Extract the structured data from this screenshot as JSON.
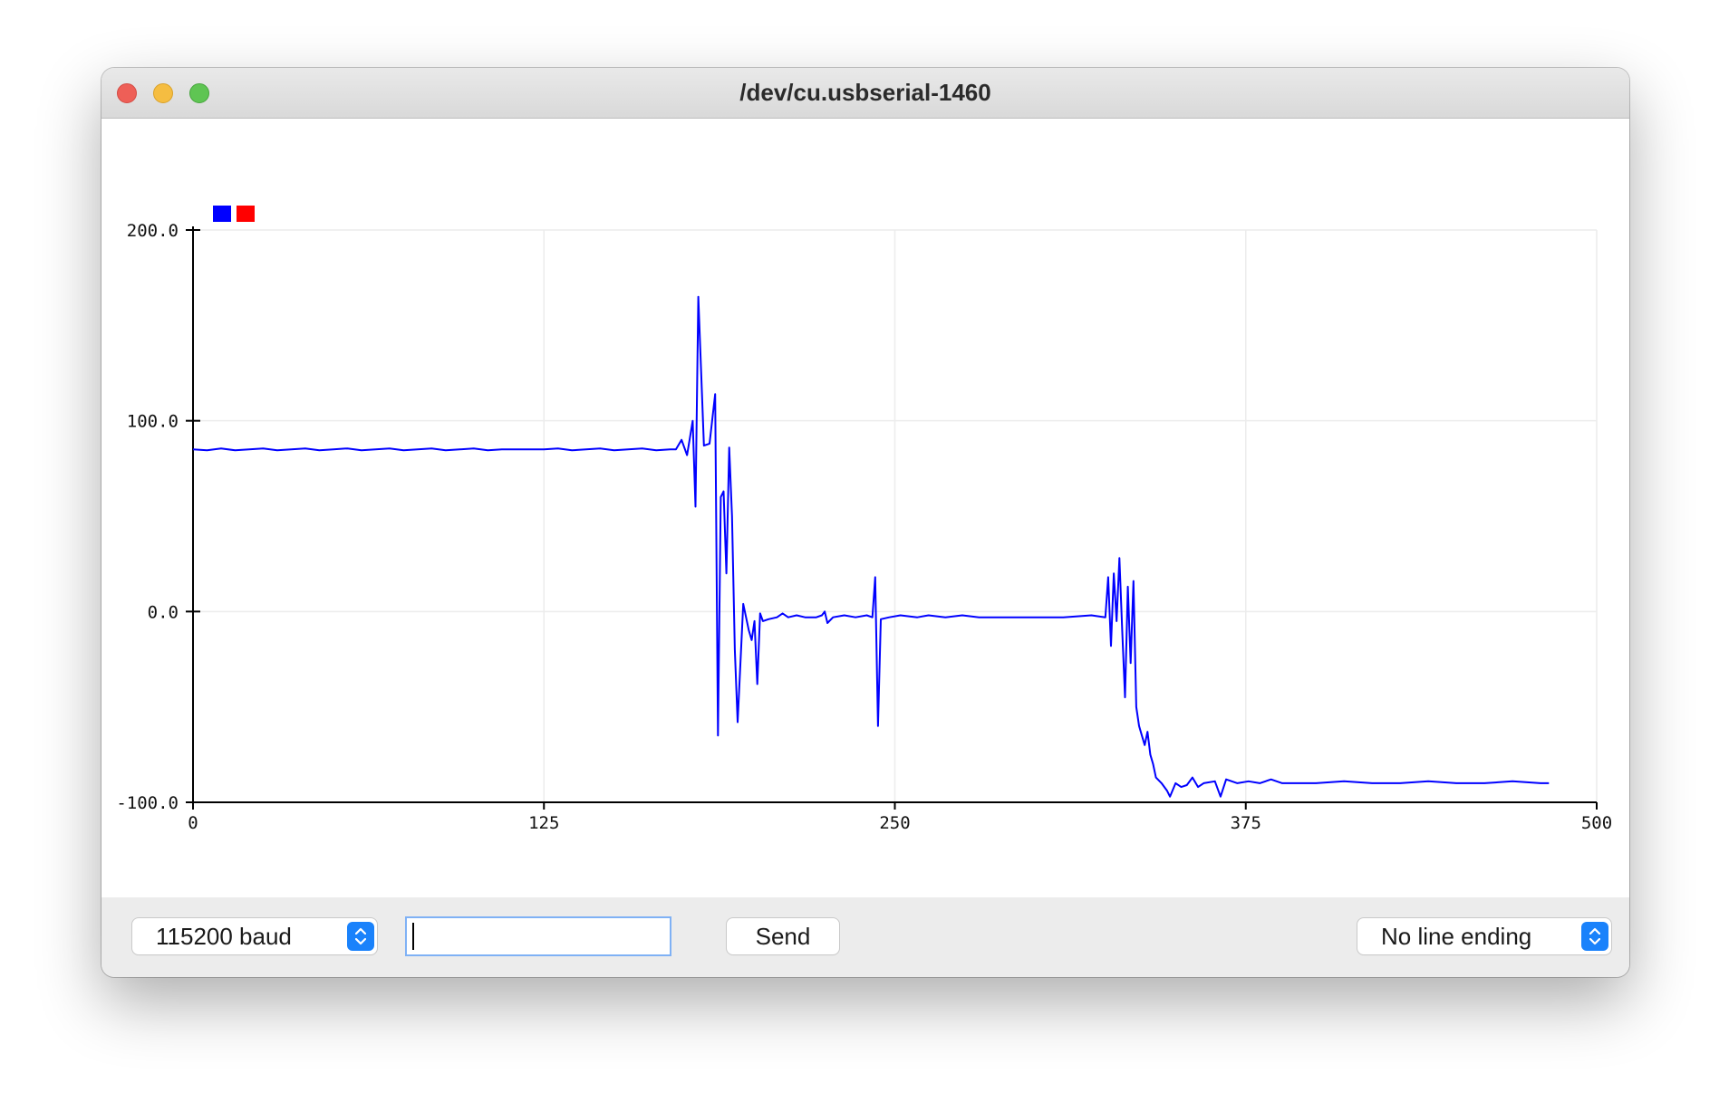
{
  "window": {
    "title": "/dev/cu.usbserial-1460"
  },
  "toolbar": {
    "baud_rate": "115200 baud",
    "message_value": "",
    "send_label": "Send",
    "line_ending": "No line ending"
  },
  "colors": {
    "series_1": "#0000ff",
    "series_2": "#ff0000",
    "select_accent": "#1a82fb"
  },
  "icons": {
    "select_arrows": "up-down-chevron-icon",
    "close": "close-icon",
    "minimize": "minimize-icon",
    "zoom": "zoom-icon"
  },
  "chart_data": {
    "type": "line",
    "grid": true,
    "legend": "top-left",
    "xlim": [
      0,
      500
    ],
    "ylim": [
      -100,
      200
    ],
    "x_ticks": [
      "0",
      "125",
      "250",
      "375",
      "500"
    ],
    "y_ticks": [
      "200.0",
      "100.0",
      "0.0",
      "-100.0"
    ],
    "series": [
      {
        "color": "#0000ff",
        "points": [
          [
            0,
            85
          ],
          [
            5,
            84.5
          ],
          [
            10,
            85.5
          ],
          [
            15,
            84.5
          ],
          [
            20,
            85
          ],
          [
            25,
            85.5
          ],
          [
            30,
            84.5
          ],
          [
            35,
            85
          ],
          [
            40,
            85.5
          ],
          [
            45,
            84.5
          ],
          [
            50,
            85
          ],
          [
            55,
            85.5
          ],
          [
            60,
            84.5
          ],
          [
            65,
            85
          ],
          [
            70,
            85.5
          ],
          [
            75,
            84.5
          ],
          [
            80,
            85
          ],
          [
            85,
            85.5
          ],
          [
            90,
            84.5
          ],
          [
            95,
            85
          ],
          [
            100,
            85.5
          ],
          [
            105,
            84.5
          ],
          [
            110,
            85
          ],
          [
            115,
            85
          ],
          [
            120,
            85
          ],
          [
            125,
            85
          ],
          [
            130,
            85.5
          ],
          [
            135,
            84.5
          ],
          [
            140,
            85
          ],
          [
            145,
            85.5
          ],
          [
            150,
            84.5
          ],
          [
            155,
            85
          ],
          [
            160,
            85.5
          ],
          [
            165,
            84.5
          ],
          [
            170,
            85
          ],
          [
            172,
            85
          ],
          [
            174,
            90
          ],
          [
            176,
            82
          ],
          [
            178,
            100
          ],
          [
            179,
            55
          ],
          [
            180,
            165
          ],
          [
            182,
            87
          ],
          [
            184,
            88
          ],
          [
            186,
            114
          ],
          [
            187,
            -65
          ],
          [
            188,
            60
          ],
          [
            189,
            63
          ],
          [
            190,
            20
          ],
          [
            191,
            86
          ],
          [
            192,
            50
          ],
          [
            193,
            -20
          ],
          [
            194,
            -58
          ],
          [
            196,
            4
          ],
          [
            198,
            -10
          ],
          [
            199,
            -15
          ],
          [
            200,
            -5
          ],
          [
            201,
            -38
          ],
          [
            202,
            -1
          ],
          [
            203,
            -5
          ],
          [
            205,
            -4
          ],
          [
            208,
            -3
          ],
          [
            210,
            -1
          ],
          [
            212,
            -3
          ],
          [
            215,
            -2
          ],
          [
            218,
            -3
          ],
          [
            222,
            -3
          ],
          [
            224,
            -2
          ],
          [
            225,
            0
          ],
          [
            226,
            -6
          ],
          [
            228,
            -3
          ],
          [
            232,
            -2
          ],
          [
            236,
            -3
          ],
          [
            240,
            -2
          ],
          [
            242,
            -3
          ],
          [
            243,
            18
          ],
          [
            244,
            -60
          ],
          [
            245,
            -4
          ],
          [
            248,
            -3
          ],
          [
            252,
            -2
          ],
          [
            258,
            -3
          ],
          [
            262,
            -2
          ],
          [
            268,
            -3
          ],
          [
            274,
            -2
          ],
          [
            280,
            -3
          ],
          [
            290,
            -3
          ],
          [
            300,
            -3
          ],
          [
            310,
            -3
          ],
          [
            320,
            -2
          ],
          [
            325,
            -3
          ],
          [
            326,
            18
          ],
          [
            327,
            -18
          ],
          [
            328,
            20
          ],
          [
            329,
            -5
          ],
          [
            330,
            28
          ],
          [
            331,
            -10
          ],
          [
            332,
            -45
          ],
          [
            333,
            13
          ],
          [
            334,
            -27
          ],
          [
            335,
            16
          ],
          [
            336,
            -50
          ],
          [
            337,
            -60
          ],
          [
            338,
            -65
          ],
          [
            339,
            -70
          ],
          [
            340,
            -63
          ],
          [
            341,
            -75
          ],
          [
            342,
            -80
          ],
          [
            343,
            -87
          ],
          [
            345,
            -90
          ],
          [
            347,
            -94
          ],
          [
            348,
            -97
          ],
          [
            350,
            -90
          ],
          [
            352,
            -92
          ],
          [
            354,
            -91
          ],
          [
            356,
            -87
          ],
          [
            358,
            -92
          ],
          [
            360,
            -90
          ],
          [
            364,
            -89
          ],
          [
            366,
            -97
          ],
          [
            368,
            -88
          ],
          [
            372,
            -90
          ],
          [
            376,
            -89
          ],
          [
            380,
            -90
          ],
          [
            384,
            -88
          ],
          [
            388,
            -90
          ],
          [
            392,
            -90
          ],
          [
            400,
            -90
          ],
          [
            410,
            -89
          ],
          [
            420,
            -90
          ],
          [
            430,
            -90
          ],
          [
            440,
            -89
          ],
          [
            450,
            -90
          ],
          [
            460,
            -90
          ],
          [
            470,
            -89
          ],
          [
            480,
            -90
          ],
          [
            483,
            -90
          ]
        ]
      },
      {
        "color": "#ff0000",
        "points": []
      }
    ]
  }
}
